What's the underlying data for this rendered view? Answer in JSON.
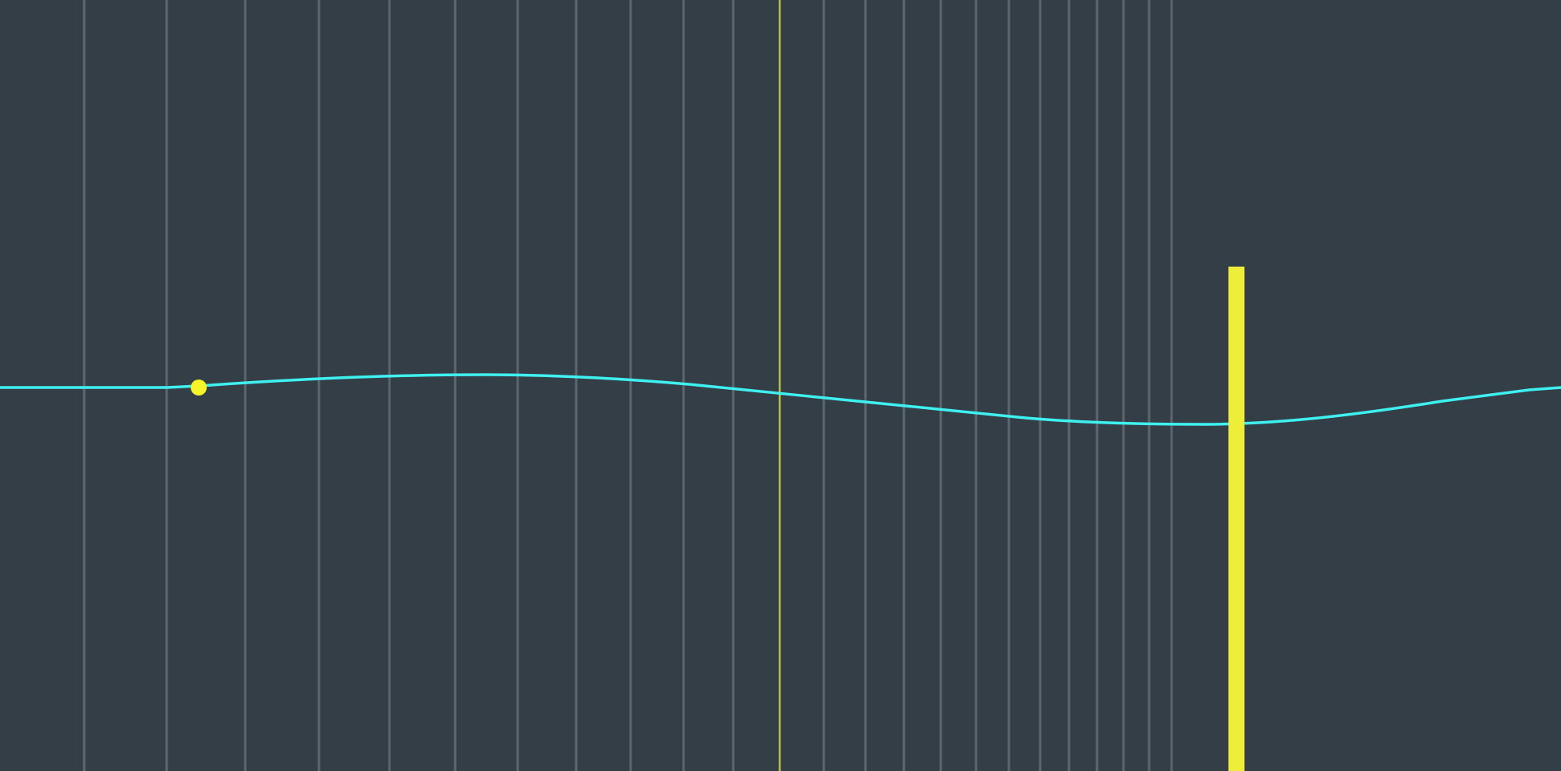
{
  "colors": {
    "background": "#343e46",
    "gridline": "#5c666e",
    "marker_line": "#b7c044",
    "curve": "#3ef0f0",
    "handle": "#f5f529",
    "playhead": "#eded3a"
  },
  "icons": {
    "handle": "circle-handle",
    "playhead": "vertical-bar"
  },
  "curve_state": {
    "handle_selected": true,
    "playhead_visible": true
  }
}
